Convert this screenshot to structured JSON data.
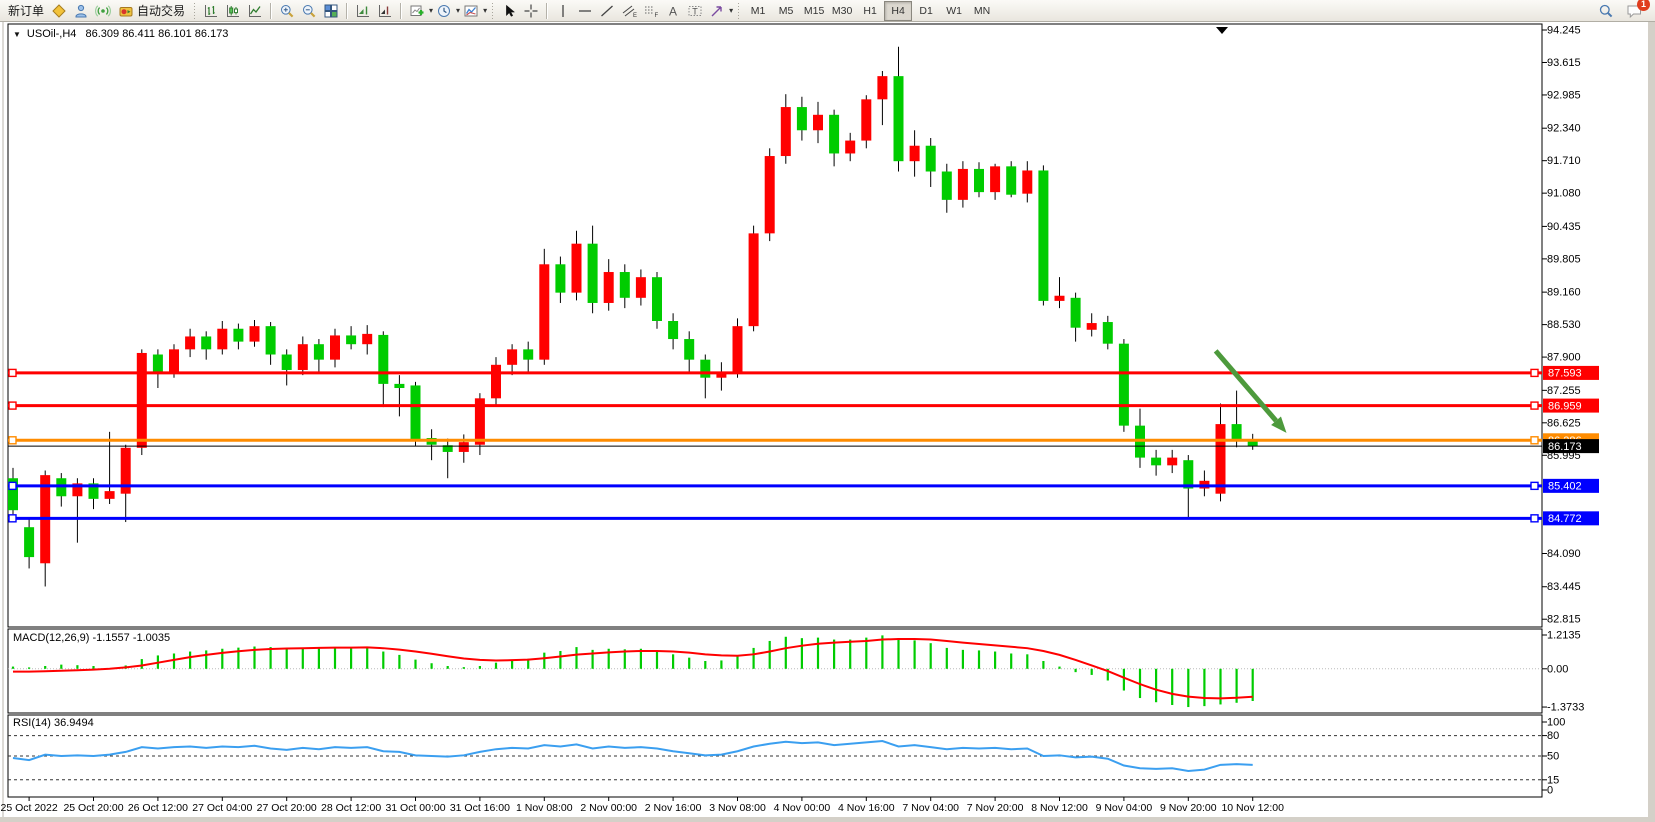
{
  "toolbar": {
    "new_order_label": "新订单",
    "auto_trading_label": "自动交易",
    "timeframes": [
      "M1",
      "M5",
      "M15",
      "M30",
      "H1",
      "H4",
      "D1",
      "W1",
      "MN"
    ],
    "active_timeframe": "H4",
    "notification_badge": "1",
    "icon_names": [
      "gold-diamond-icon",
      "contacts-icon",
      "signal-icon",
      "auto-trading-icon",
      "bar-chart-icon",
      "candlestick-chart-icon",
      "line-chart-icon",
      "zoom-in-icon",
      "zoom-out-icon",
      "tile-windows-icon",
      "auto-scroll-icon",
      "chart-shift-icon",
      "indicators-add-icon",
      "periods-clock-icon",
      "templates-icon",
      "cursor-icon",
      "crosshair-icon",
      "vertical-line-icon",
      "horizontal-line-icon",
      "trendline-icon",
      "channel-icon",
      "fibonacci-icon",
      "text-icon",
      "text-label-icon",
      "shapes-icon",
      "search-icon",
      "notifications-chat-icon"
    ]
  },
  "chart": {
    "symbol_period": "USOil-,H4",
    "ohlc": {
      "open": "86.309",
      "high": "86.411",
      "low": "86.101",
      "close": "86.173"
    }
  },
  "chart_data": {
    "type": "candlestick",
    "title": "USOil-,H4",
    "bull_color": "#ff0000",
    "bear_color": "#00cc00",
    "wick_color": "#000000",
    "grid": false,
    "y_axis": {
      "max": 94.245,
      "min": 82.815,
      "ticks": [
        "94.245",
        "93.615",
        "92.985",
        "92.340",
        "91.710",
        "91.080",
        "90.435",
        "89.805",
        "89.160",
        "88.530",
        "87.900",
        "87.255",
        "86.625",
        "85.995",
        "84.090",
        "83.445",
        "82.815"
      ]
    },
    "x_labels": [
      "25 Oct 2022",
      "25 Oct 20:00",
      "26 Oct 12:00",
      "27 Oct 04:00",
      "27 Oct 20:00",
      "28 Oct 12:00",
      "31 Oct 00:00",
      "31 Oct 16:00",
      "1 Nov 08:00",
      "2 Nov 00:00",
      "2 Nov 16:00",
      "3 Nov 08:00",
      "4 Nov 00:00",
      "4 Nov 16:00",
      "7 Nov 04:00",
      "7 Nov 20:00",
      "8 Nov 12:00",
      "9 Nov 04:00",
      "9 Nov 20:00",
      "10 Nov 12:00"
    ],
    "first_label_bar": 1,
    "label_every": 4,
    "ohlc_order": "open,high,low,close",
    "candles": [
      [
        85.55,
        85.75,
        84.85,
        84.93
      ],
      [
        84.6,
        84.75,
        83.8,
        84.02
      ],
      [
        83.9,
        85.7,
        83.45,
        85.61
      ],
      [
        85.55,
        85.65,
        85.0,
        85.2
      ],
      [
        85.2,
        85.55,
        84.3,
        85.45
      ],
      [
        85.45,
        85.55,
        84.95,
        85.15
      ],
      [
        85.15,
        86.45,
        85.05,
        85.3
      ],
      [
        85.25,
        86.2,
        84.7,
        86.14
      ],
      [
        86.14,
        88.05,
        86.0,
        87.98
      ],
      [
        87.95,
        88.05,
        87.3,
        87.62
      ],
      [
        87.62,
        88.15,
        87.5,
        88.05
      ],
      [
        88.05,
        88.45,
        87.9,
        88.3
      ],
      [
        88.3,
        88.4,
        87.85,
        88.05
      ],
      [
        88.05,
        88.6,
        87.95,
        88.45
      ],
      [
        88.45,
        88.55,
        88.05,
        88.2
      ],
      [
        88.2,
        88.62,
        88.1,
        88.5
      ],
      [
        88.5,
        88.58,
        87.75,
        87.95
      ],
      [
        87.95,
        88.05,
        87.35,
        87.65
      ],
      [
        87.65,
        88.3,
        87.55,
        88.15
      ],
      [
        88.15,
        88.25,
        87.6,
        87.85
      ],
      [
        87.85,
        88.45,
        87.7,
        88.32
      ],
      [
        88.32,
        88.5,
        88.05,
        88.15
      ],
      [
        88.15,
        88.52,
        87.95,
        88.35
      ],
      [
        88.33,
        88.4,
        86.93,
        87.38
      ],
      [
        87.38,
        87.55,
        86.75,
        87.3
      ],
      [
        87.35,
        87.42,
        86.18,
        86.3
      ],
      [
        86.33,
        86.5,
        85.9,
        86.2
      ],
      [
        86.19,
        86.32,
        85.55,
        86.06
      ],
      [
        86.06,
        86.4,
        85.85,
        86.25
      ],
      [
        86.2,
        87.2,
        86.0,
        87.1
      ],
      [
        87.1,
        87.9,
        86.95,
        87.75
      ],
      [
        87.75,
        88.15,
        87.55,
        88.05
      ],
      [
        88.05,
        88.2,
        87.6,
        87.85
      ],
      [
        87.85,
        90.0,
        87.75,
        89.7
      ],
      [
        89.7,
        89.85,
        88.95,
        89.15
      ],
      [
        89.15,
        90.35,
        89.0,
        90.1
      ],
      [
        90.1,
        90.45,
        88.75,
        88.95
      ],
      [
        88.95,
        89.8,
        88.8,
        89.55
      ],
      [
        89.55,
        89.7,
        88.85,
        89.05
      ],
      [
        89.05,
        89.6,
        88.9,
        89.45
      ],
      [
        89.45,
        89.55,
        88.45,
        88.6
      ],
      [
        88.6,
        88.75,
        88.05,
        88.25
      ],
      [
        88.25,
        88.4,
        87.6,
        87.85
      ],
      [
        87.85,
        87.95,
        87.1,
        87.5
      ],
      [
        87.5,
        87.8,
        87.25,
        87.6
      ],
      [
        87.6,
        88.65,
        87.5,
        88.5
      ],
      [
        88.5,
        90.45,
        88.4,
        90.3
      ],
      [
        90.3,
        91.95,
        90.15,
        91.8
      ],
      [
        91.8,
        93.0,
        91.65,
        92.75
      ],
      [
        92.75,
        92.95,
        92.1,
        92.3
      ],
      [
        92.3,
        92.85,
        92.05,
        92.6
      ],
      [
        92.6,
        92.7,
        91.6,
        91.85
      ],
      [
        91.85,
        92.25,
        91.7,
        92.1
      ],
      [
        92.1,
        92.98,
        91.95,
        92.9
      ],
      [
        92.9,
        93.45,
        92.4,
        93.35
      ],
      [
        93.35,
        93.92,
        91.5,
        91.7
      ],
      [
        91.7,
        92.3,
        91.4,
        92.0
      ],
      [
        92.0,
        92.15,
        91.2,
        91.5
      ],
      [
        91.5,
        91.65,
        90.7,
        90.95
      ],
      [
        90.95,
        91.7,
        90.8,
        91.55
      ],
      [
        91.55,
        91.68,
        91.0,
        91.1
      ],
      [
        91.1,
        91.65,
        90.95,
        91.6
      ],
      [
        91.6,
        91.7,
        91.0,
        91.05
      ],
      [
        91.07,
        91.7,
        90.9,
        91.52
      ],
      [
        91.52,
        91.62,
        88.9,
        88.99
      ],
      [
        88.99,
        89.45,
        88.85,
        89.09
      ],
      [
        89.05,
        89.15,
        88.2,
        88.47
      ],
      [
        88.43,
        88.75,
        88.3,
        88.56
      ],
      [
        88.58,
        88.7,
        88.05,
        88.16
      ],
      [
        88.16,
        88.25,
        86.45,
        86.57
      ],
      [
        86.57,
        86.9,
        85.75,
        85.95
      ],
      [
        85.95,
        86.1,
        85.6,
        85.8
      ],
      [
        85.8,
        86.1,
        85.65,
        85.95
      ],
      [
        85.9,
        86.0,
        84.75,
        85.35
      ],
      [
        85.35,
        85.7,
        85.2,
        85.5
      ],
      [
        85.25,
        87.0,
        85.1,
        86.6
      ],
      [
        86.6,
        87.25,
        86.15,
        86.29
      ],
      [
        86.309,
        86.411,
        86.101,
        86.173
      ]
    ],
    "horizontal_lines": [
      {
        "price": 87.593,
        "label": "87.593",
        "color": "#ff0000",
        "width": 3
      },
      {
        "price": 86.959,
        "label": "86.959",
        "color": "#ff0000",
        "width": 3
      },
      {
        "price": 86.286,
        "label": "86.286",
        "color": "#ff8c00",
        "width": 3
      },
      {
        "price": 86.173,
        "label": "86.173",
        "color": "#000000",
        "width": 1,
        "current": true
      },
      {
        "price": 85.402,
        "label": "85.402",
        "color": "#0000ff",
        "width": 3
      },
      {
        "price": 84.772,
        "label": "84.772",
        "color": "#0000ff",
        "width": 3
      }
    ],
    "arrow": {
      "from_bar": 74.7,
      "from_price": 88.02,
      "to_bar": 79.1,
      "to_price": 86.43,
      "color": "#4d9a3c"
    },
    "macd": {
      "label": "MACD(12,26,9)",
      "main_value": "-1.1557",
      "signal_value": "-1.0035",
      "axis_ticks": [
        {
          "v": 1.2135,
          "label": "1.2135"
        },
        {
          "v": 0,
          "label": "0.00"
        },
        {
          "v": -1.3733,
          "label": "-1.3733"
        }
      ],
      "hist_color": "#00cc00",
      "signal_color": "#ff0000",
      "histogram": [
        0.08,
        0.05,
        0.1,
        0.15,
        0.13,
        0.1,
        0.02,
        0.12,
        0.35,
        0.48,
        0.55,
        0.62,
        0.66,
        0.72,
        0.76,
        0.8,
        0.78,
        0.74,
        0.76,
        0.74,
        0.78,
        0.76,
        0.78,
        0.62,
        0.5,
        0.33,
        0.2,
        0.1,
        0.06,
        0.1,
        0.22,
        0.32,
        0.36,
        0.58,
        0.64,
        0.78,
        0.68,
        0.72,
        0.7,
        0.72,
        0.62,
        0.52,
        0.4,
        0.28,
        0.3,
        0.45,
        0.75,
        1.0,
        1.15,
        1.1,
        1.12,
        1.05,
        1.05,
        1.12,
        1.2,
        1.1,
        1.02,
        0.92,
        0.75,
        0.68,
        0.66,
        0.62,
        0.55,
        0.52,
        0.28,
        0.08,
        -0.12,
        -0.22,
        -0.42,
        -0.78,
        -1.05,
        -1.2,
        -1.3,
        -1.3733,
        -1.34,
        -1.28,
        -1.22,
        -1.1557
      ],
      "signal": [
        -0.1,
        -0.1,
        -0.09,
        -0.07,
        -0.05,
        -0.03,
        0.0,
        0.05,
        0.12,
        0.22,
        0.32,
        0.42,
        0.5,
        0.57,
        0.63,
        0.68,
        0.71,
        0.73,
        0.74,
        0.75,
        0.76,
        0.76,
        0.77,
        0.74,
        0.69,
        0.62,
        0.54,
        0.45,
        0.37,
        0.32,
        0.3,
        0.31,
        0.33,
        0.38,
        0.44,
        0.51,
        0.55,
        0.59,
        0.62,
        0.64,
        0.64,
        0.62,
        0.58,
        0.52,
        0.48,
        0.47,
        0.52,
        0.62,
        0.74,
        0.83,
        0.9,
        0.94,
        0.97,
        1.0,
        1.05,
        1.07,
        1.07,
        1.05,
        1.0,
        0.94,
        0.89,
        0.84,
        0.79,
        0.74,
        0.64,
        0.5,
        0.32,
        0.12,
        -0.08,
        -0.32,
        -0.55,
        -0.75,
        -0.9,
        -1.0,
        -1.05,
        -1.06,
        -1.04,
        -1.0035
      ]
    },
    "rsi": {
      "label": "RSI(14)",
      "value": "36.9494",
      "color": "#3b9ff0",
      "levels": [
        "100",
        "80",
        "50",
        "15",
        "0"
      ],
      "dashed_levels": [
        80,
        50,
        15
      ],
      "values": [
        47,
        44,
        52,
        50,
        51,
        50,
        52,
        56,
        63,
        61,
        63,
        64,
        62,
        64,
        63,
        65,
        61,
        59,
        62,
        60,
        63,
        62,
        63,
        57,
        56,
        51,
        50,
        49,
        51,
        56,
        60,
        62,
        61,
        66,
        64,
        67,
        61,
        64,
        62,
        63,
        61,
        57,
        54,
        51,
        52,
        57,
        64,
        68,
        71,
        69,
        70,
        66,
        68,
        70,
        72,
        64,
        66,
        63,
        60,
        62,
        61,
        62,
        60,
        61,
        50,
        51,
        48,
        49,
        46,
        36,
        32,
        31,
        32,
        28,
        30,
        37,
        38,
        36.9494
      ]
    }
  }
}
